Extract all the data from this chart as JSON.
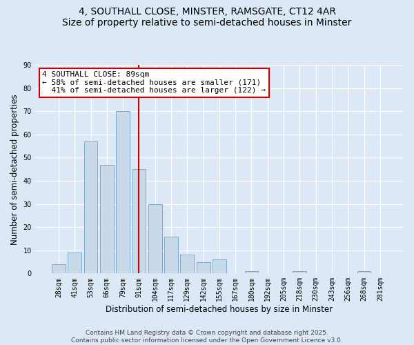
{
  "title": "4, SOUTHALL CLOSE, MINSTER, RAMSGATE, CT12 4AR",
  "subtitle": "Size of property relative to semi-detached houses in Minster",
  "xlabel": "Distribution of semi-detached houses by size in Minster",
  "ylabel": "Number of semi-detached properties",
  "categories": [
    "28sqm",
    "41sqm",
    "53sqm",
    "66sqm",
    "79sqm",
    "91sqm",
    "104sqm",
    "117sqm",
    "129sqm",
    "142sqm",
    "155sqm",
    "167sqm",
    "180sqm",
    "192sqm",
    "205sqm",
    "218sqm",
    "230sqm",
    "243sqm",
    "256sqm",
    "268sqm",
    "281sqm"
  ],
  "values": [
    4,
    9,
    57,
    47,
    70,
    45,
    30,
    16,
    8,
    5,
    6,
    0,
    1,
    0,
    0,
    1,
    0,
    0,
    0,
    1,
    0
  ],
  "bar_color": "#c8daea",
  "bar_edge_color": "#7aaad0",
  "vline_index": 5,
  "vline_color": "#cc0000",
  "annotation_title": "4 SOUTHALL CLOSE: 89sqm",
  "annotation_line1": "← 58% of semi-detached houses are smaller (171)",
  "annotation_line2": "  41% of semi-detached houses are larger (122) →",
  "annotation_box_facecolor": "#ffffff",
  "annotation_box_edgecolor": "#cc0000",
  "ylim": [
    0,
    90
  ],
  "yticks": [
    0,
    10,
    20,
    30,
    40,
    50,
    60,
    70,
    80,
    90
  ],
  "footer_line1": "Contains HM Land Registry data © Crown copyright and database right 2025.",
  "footer_line2": "Contains public sector information licensed under the Open Government Licence v3.0.",
  "background_color": "#dce8f5",
  "plot_bg_color": "#dce8f5",
  "title_fontsize": 10,
  "axis_label_fontsize": 8.5,
  "tick_fontsize": 7,
  "footer_fontsize": 6.5,
  "annotation_fontsize": 8
}
